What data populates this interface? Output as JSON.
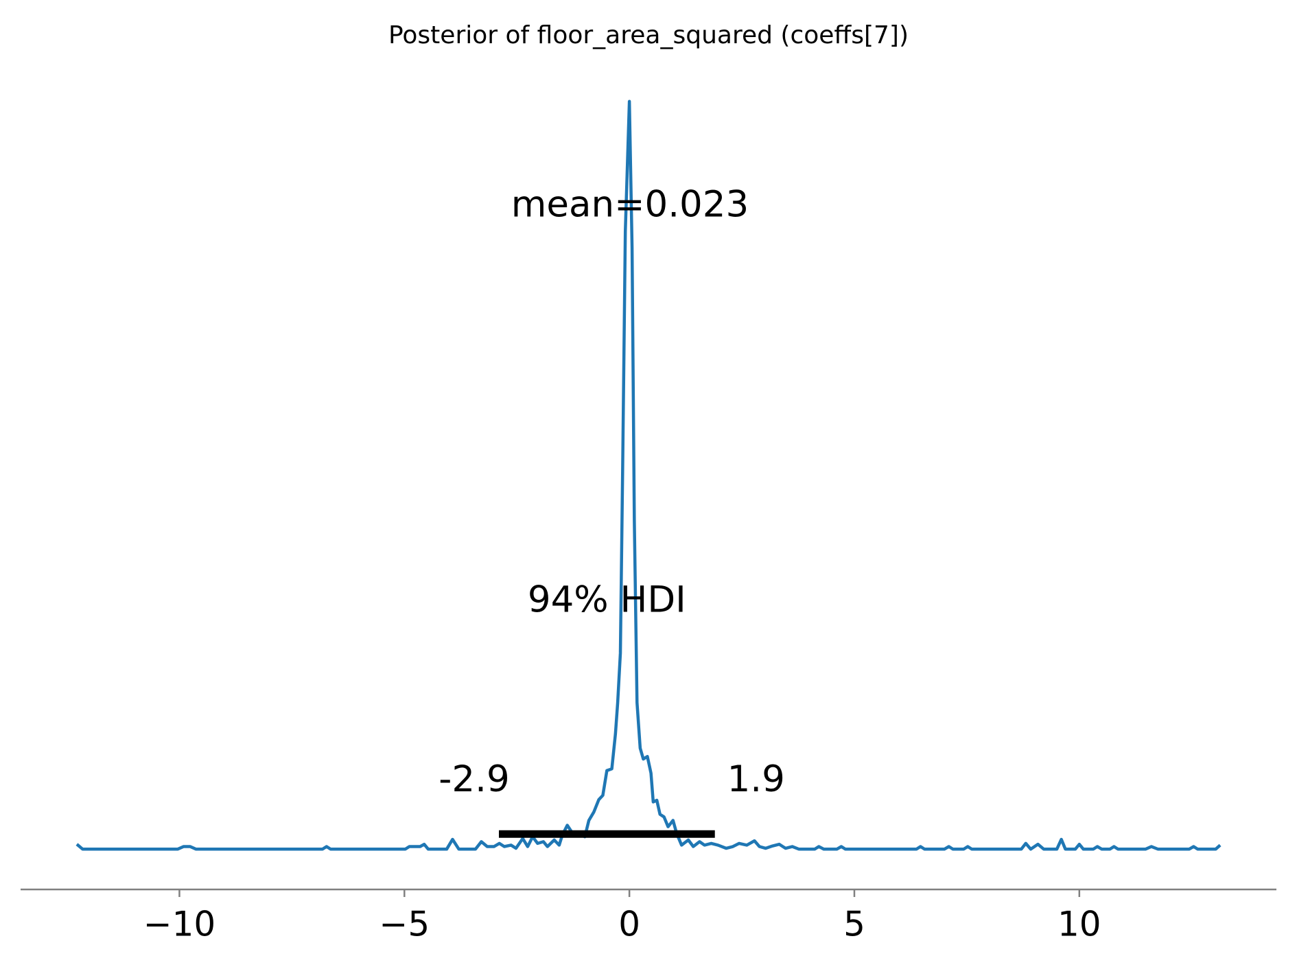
{
  "chart_data": {
    "type": "line",
    "title": "Posterior of floor_area_squared (coeffs[7])",
    "color": "#1f77b4",
    "x": [
      -12.28,
      -12.15,
      -10.04,
      -9.91,
      -9.76,
      -9.63,
      -6.82,
      -6.73,
      -6.64,
      -4.98,
      -4.89,
      -4.65,
      -4.56,
      -4.47,
      -4.06,
      -3.93,
      -3.79,
      -3.42,
      -3.29,
      -3.16,
      -3.01,
      -2.89,
      -2.78,
      -2.63,
      -2.52,
      -2.37,
      -2.26,
      -2.15,
      -2.04,
      -1.91,
      -1.82,
      -1.67,
      -1.56,
      -1.49,
      -1.38,
      -1.27,
      -1.12,
      -0.99,
      -0.9,
      -0.79,
      -0.68,
      -0.59,
      -0.5,
      -0.39,
      -0.31,
      -0.26,
      -0.2,
      -0.15,
      -0.09,
      0,
      0.06,
      0.11,
      0.17,
      0.24,
      0.31,
      0.4,
      0.48,
      0.53,
      0.61,
      0.68,
      0.77,
      0.86,
      0.97,
      1.05,
      1.16,
      1.31,
      1.42,
      1.56,
      1.67,
      1.82,
      1.97,
      2.15,
      2.3,
      2.44,
      2.61,
      2.78,
      2.89,
      3.03,
      3.18,
      3.33,
      3.47,
      3.62,
      3.77,
      4.12,
      4.21,
      4.32,
      4.61,
      4.71,
      4.8,
      6.38,
      6.47,
      6.56,
      7.0,
      7.1,
      7.19,
      7.43,
      7.52,
      7.61,
      8.71,
      8.81,
      8.92,
      9.08,
      9.21,
      9.5,
      9.6,
      9.69,
      9.91,
      10.0,
      10.09,
      10.31,
      10.4,
      10.5,
      10.68,
      10.77,
      10.86,
      11.47,
      11.6,
      11.75,
      12.44,
      12.54,
      12.63,
      13.03,
      13.13
    ],
    "values": [
      0.017,
      0,
      0,
      0.009,
      0.009,
      0,
      0,
      0.009,
      0,
      0,
      0.009,
      0.009,
      0.017,
      0,
      0,
      0.034,
      0,
      0,
      0.026,
      0.009,
      0.009,
      0.02,
      0.009,
      0.014,
      0.003,
      0.037,
      0.009,
      0.043,
      0.02,
      0.026,
      0.009,
      0.032,
      0.014,
      0.049,
      0.083,
      0.057,
      0.057,
      0.043,
      0.1,
      0.129,
      0.172,
      0.187,
      0.273,
      0.279,
      0.4,
      0.509,
      0.681,
      1.313,
      2.147,
      2.598,
      2.089,
      1.141,
      0.509,
      0.351,
      0.313,
      0.322,
      0.264,
      0.164,
      0.17,
      0.121,
      0.112,
      0.078,
      0.1,
      0.055,
      0.014,
      0.032,
      0.009,
      0.026,
      0.014,
      0.02,
      0.014,
      0.003,
      0.009,
      0.02,
      0.014,
      0.029,
      0.009,
      0.003,
      0.011,
      0.017,
      0.003,
      0.009,
      0,
      0,
      0.009,
      0,
      0,
      0.009,
      0,
      0,
      0.009,
      0,
      0,
      0.009,
      0,
      0,
      0.009,
      0,
      0,
      0.02,
      0,
      0.017,
      0,
      0,
      0.034,
      0,
      0,
      0.017,
      0,
      0,
      0.009,
      0,
      0,
      0.009,
      0,
      0,
      0.009,
      0,
      0,
      0.009,
      0,
      0,
      0.014
    ],
    "mean_label": "mean=0.023",
    "hdi_label": "94% HDI",
    "hdi": [
      -2.9,
      1.9
    ],
    "xlim": [
      -13.53,
      14.38
    ],
    "ylim": [
      -0.14,
      2.75
    ],
    "xticks": [
      {
        "value": -10,
        "label": "−10"
      },
      {
        "value": -5,
        "label": "−5"
      },
      0,
      5,
      10
    ]
  }
}
